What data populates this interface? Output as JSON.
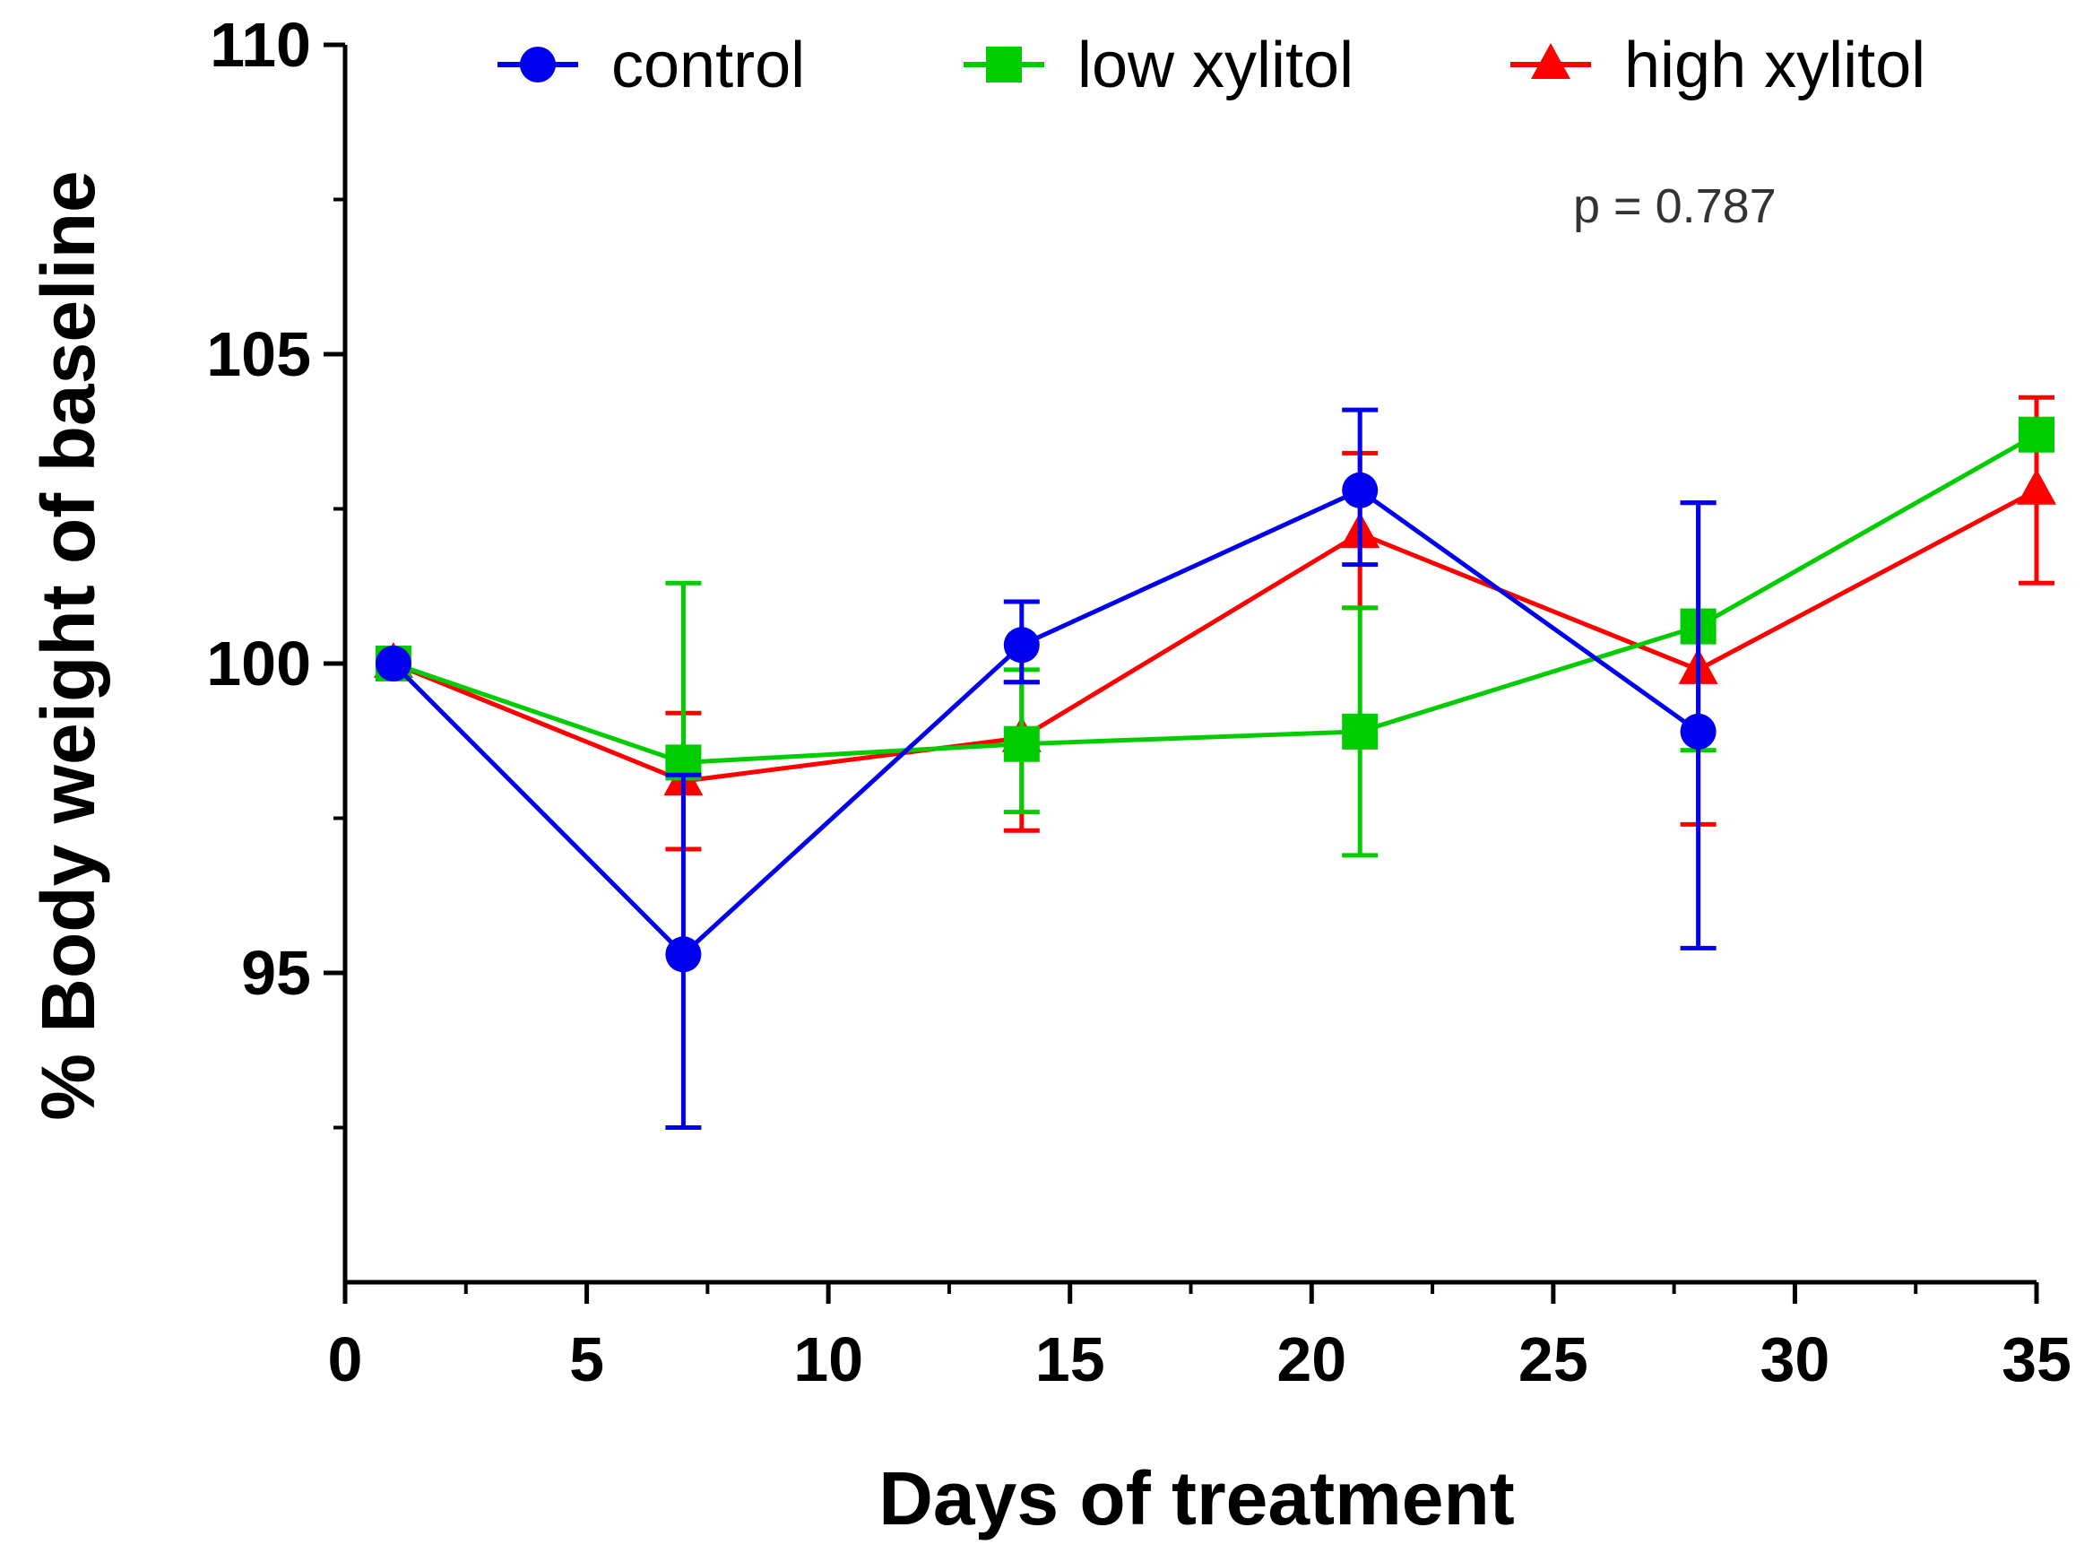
{
  "chart_data": {
    "type": "line",
    "title": "",
    "xlabel": "Days of treatment",
    "ylabel": "% Body weight of baseline",
    "xlim": [
      0,
      35
    ],
    "ylim": [
      90,
      110
    ],
    "xticks": [
      "0",
      "5",
      "10",
      "15",
      "20",
      "25",
      "30",
      "35"
    ],
    "yticks": [
      "95",
      "100",
      "105",
      "110"
    ],
    "grid": false,
    "legend_position": "top",
    "annotation": "p = 0.787",
    "series": [
      {
        "name": "control",
        "color": "#0000ee",
        "marker": "circle",
        "x": [
          1,
          7,
          14,
          21,
          28
        ],
        "values": [
          100,
          95.3,
          100.3,
          102.8,
          98.9
        ],
        "err_upper": [
          100,
          98.2,
          101,
          104.1,
          102.6
        ],
        "err_lower": [
          100,
          92.5,
          99.7,
          101.6,
          95.4
        ]
      },
      {
        "name": "low xylitol",
        "color": "#00cc00",
        "marker": "square",
        "x": [
          1,
          7,
          14,
          21,
          28,
          35
        ],
        "values": [
          100,
          98.4,
          98.7,
          98.9,
          100.6,
          103.7
        ],
        "err_upper": [
          100,
          101.3,
          99.9,
          100.9,
          102.6,
          103.7
        ],
        "err_lower": [
          100,
          98.4,
          97.6,
          96.9,
          98.6,
          103.7
        ]
      },
      {
        "name": "high xylitol",
        "color": "#ff0000",
        "marker": "triangle",
        "x": [
          1,
          7,
          14,
          21,
          28,
          35
        ],
        "values": [
          100,
          98.1,
          98.8,
          102.1,
          99.9,
          102.8
        ],
        "err_upper": [
          100,
          99.2,
          99.7,
          103.4,
          102.6,
          104.3
        ],
        "err_lower": [
          100,
          97.0,
          97.3,
          100.9,
          97.4,
          101.3
        ]
      }
    ]
  }
}
